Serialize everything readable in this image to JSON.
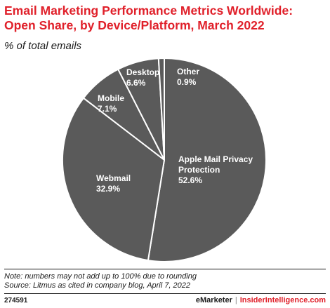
{
  "header": {
    "title": "Email Marketing Performance Metrics Worldwide: Open Share, by Device/Platform, March 2022",
    "subtitle": "% of total emails"
  },
  "colors": {
    "accent": "#e0202a",
    "slice_fill": "#5a5a5a",
    "slice_stroke": "#ffffff",
    "label": "#ffffff"
  },
  "chart_data": {
    "type": "pie",
    "start_angle_deg": 0,
    "direction": "clockwise",
    "slices": [
      {
        "lines": [
          "Apple Mail Privacy",
          "Protection",
          "52.6%"
        ],
        "label": "Apple Mail Privacy Protection",
        "value": 52.6
      },
      {
        "lines": [
          "Webmail",
          "32.9%"
        ],
        "label": "Webmail",
        "value": 32.9
      },
      {
        "lines": [
          "Mobile",
          "7.1%"
        ],
        "label": "Mobile",
        "value": 7.1
      },
      {
        "lines": [
          "Desktop",
          "6.6%"
        ],
        "label": "Desktop",
        "value": 6.6
      },
      {
        "lines": [
          "Other",
          "0.9%"
        ],
        "label": "Other",
        "value": 0.9
      }
    ]
  },
  "notes": {
    "note": "Note: numbers may not add up to 100% due to rounding",
    "source": "Source: Litmus as cited in company blog, April 7, 2022"
  },
  "footer": {
    "chart_id": "274591",
    "brand_a": "eMarketer",
    "separator": "|",
    "brand_b": "InsiderIntelligence.com"
  }
}
